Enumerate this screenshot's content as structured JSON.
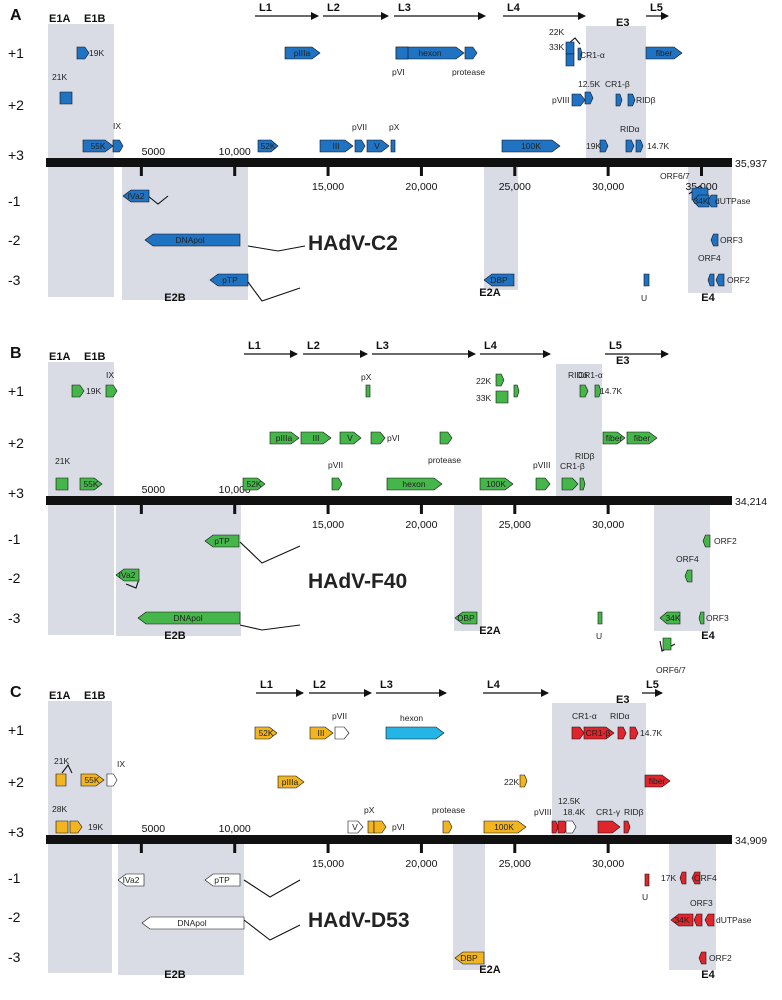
{
  "colors": {
    "shade": "#d9dce5",
    "axis": "#111111",
    "C2": "#1f73c2",
    "F40": "#45b649",
    "D53_yellow": "#f2b51f",
    "D53_red": "#e0262c",
    "D53_cyan": "#25b4e6",
    "white": "#ffffff"
  },
  "panels": [
    {
      "letter": "A",
      "title": "HAdV-C2",
      "genome_length": 35937,
      "length_label": "35,937",
      "frames": [
        "+1",
        "+2",
        "+3",
        "-1",
        "-2",
        "-3"
      ],
      "scale_labels": [
        "5000",
        "10,000",
        "15,000",
        "20,000",
        "25,000",
        "30,000",
        "35,000"
      ],
      "regions": [
        {
          "name": "E1A",
          "position": "top"
        },
        {
          "name": "E1B",
          "position": "top"
        },
        {
          "name": "E3",
          "position": "top"
        },
        {
          "name": "E2B",
          "position": "bottom"
        },
        {
          "name": "E2A",
          "position": "bottom"
        },
        {
          "name": "E4",
          "position": "bottom"
        }
      ],
      "late": [
        "L1",
        "L2",
        "L3",
        "L4",
        "L5"
      ],
      "genes": [
        {
          "label": "19K",
          "frame": "+1"
        },
        {
          "label": "pIIIa",
          "frame": "+1"
        },
        {
          "label": "hexon",
          "frame": "+1"
        },
        {
          "label": "pVI",
          "frame": "+1"
        },
        {
          "label": "protease",
          "frame": "+1"
        },
        {
          "label": "22K",
          "frame": "+1"
        },
        {
          "label": "33K",
          "frame": "+1"
        },
        {
          "label": "CR1-α",
          "frame": "+1"
        },
        {
          "label": "fiber",
          "frame": "+1"
        },
        {
          "label": "21K",
          "frame": "+2"
        },
        {
          "label": "12.5K",
          "frame": "+2"
        },
        {
          "label": "pVIII",
          "frame": "+2"
        },
        {
          "label": "CR1-β",
          "frame": "+2"
        },
        {
          "label": "RIDβ",
          "frame": "+2"
        },
        {
          "label": "IX",
          "frame": "+3"
        },
        {
          "label": "55K",
          "frame": "+3"
        },
        {
          "label": "52K",
          "frame": "+3"
        },
        {
          "label": "III",
          "frame": "+3"
        },
        {
          "label": "pVII",
          "frame": "+3"
        },
        {
          "label": "V",
          "frame": "+3"
        },
        {
          "label": "pX",
          "frame": "+3"
        },
        {
          "label": "100K",
          "frame": "+3"
        },
        {
          "label": "19K",
          "frame": "+3"
        },
        {
          "label": "RIDα",
          "frame": "+3"
        },
        {
          "label": "14.7K",
          "frame": "+3"
        },
        {
          "label": "IVa2",
          "frame": "-1"
        },
        {
          "label": "ORF6/7",
          "frame": "-1"
        },
        {
          "label": "34K",
          "frame": "-1"
        },
        {
          "label": "dUTPase",
          "frame": "-1"
        },
        {
          "label": "DNApol",
          "frame": "-2"
        },
        {
          "label": "ORF3",
          "frame": "-2"
        },
        {
          "label": "pTP",
          "frame": "-3"
        },
        {
          "label": "DBP",
          "frame": "-3"
        },
        {
          "label": "U",
          "frame": "-3"
        },
        {
          "label": "ORF4",
          "frame": "-3"
        },
        {
          "label": "ORF2",
          "frame": "-3"
        }
      ]
    },
    {
      "letter": "B",
      "title": "HAdV-F40",
      "genome_length": 34214,
      "length_label": "34,214",
      "frames": [
        "+1",
        "+2",
        "+3",
        "-1",
        "-2",
        "-3"
      ],
      "scale_labels": [
        "5000",
        "10,000",
        "15,000",
        "20,000",
        "25,000",
        "30,000"
      ],
      "regions": [
        {
          "name": "E1A",
          "position": "top"
        },
        {
          "name": "E1B",
          "position": "top"
        },
        {
          "name": "E3",
          "position": "top"
        },
        {
          "name": "E2B",
          "position": "bottom"
        },
        {
          "name": "E2A",
          "position": "bottom"
        },
        {
          "name": "E4",
          "position": "bottom"
        }
      ],
      "late": [
        "L1",
        "L2",
        "L3",
        "L4",
        "L5"
      ],
      "genes": [
        {
          "label": "19K",
          "frame": "+1"
        },
        {
          "label": "IX",
          "frame": "+1"
        },
        {
          "label": "pX",
          "frame": "+1"
        },
        {
          "label": "22K",
          "frame": "+1"
        },
        {
          "label": "33K",
          "frame": "+1"
        },
        {
          "label": "CR1-α",
          "frame": "+1"
        },
        {
          "label": "RIDα",
          "frame": "+1"
        },
        {
          "label": "14.7K",
          "frame": "+1"
        },
        {
          "label": "pIIIa",
          "frame": "+2"
        },
        {
          "label": "III",
          "frame": "+2"
        },
        {
          "label": "V",
          "frame": "+2"
        },
        {
          "label": "pVI",
          "frame": "+2"
        },
        {
          "label": "protease",
          "frame": "+2"
        },
        {
          "label": "fiber",
          "frame": "+2"
        },
        {
          "label": "fiber",
          "frame": "+2"
        },
        {
          "label": "21K",
          "frame": "+3"
        },
        {
          "label": "55K",
          "frame": "+3"
        },
        {
          "label": "52K",
          "frame": "+3"
        },
        {
          "label": "pVII",
          "frame": "+3"
        },
        {
          "label": "hexon",
          "frame": "+3"
        },
        {
          "label": "100K",
          "frame": "+3"
        },
        {
          "label": "pVIII",
          "frame": "+3"
        },
        {
          "label": "CR1-β",
          "frame": "+3"
        },
        {
          "label": "RIDβ",
          "frame": "+3"
        },
        {
          "label": "pTP",
          "frame": "-1"
        },
        {
          "label": "ORF2",
          "frame": "-1"
        },
        {
          "label": "IVa2",
          "frame": "-2"
        },
        {
          "label": "ORF4",
          "frame": "-2"
        },
        {
          "label": "DNApol",
          "frame": "-3"
        },
        {
          "label": "DBP",
          "frame": "-3"
        },
        {
          "label": "U",
          "frame": "-3"
        },
        {
          "label": "34K",
          "frame": "-3"
        },
        {
          "label": "ORF3",
          "frame": "-3"
        },
        {
          "label": "ORF6/7",
          "frame": "-3"
        }
      ]
    },
    {
      "letter": "C",
      "title": "HAdV-D53",
      "genome_length": 34909,
      "length_label": "34,909",
      "frames": [
        "+1",
        "+2",
        "+3",
        "-1",
        "-2",
        "-3"
      ],
      "scale_labels": [
        "5000",
        "10,000",
        "15,000",
        "20,000",
        "25,000",
        "30,000"
      ],
      "regions": [
        {
          "name": "E1A",
          "position": "top"
        },
        {
          "name": "E1B",
          "position": "top"
        },
        {
          "name": "E3",
          "position": "top"
        },
        {
          "name": "E2B",
          "position": "bottom"
        },
        {
          "name": "E2A",
          "position": "bottom"
        },
        {
          "name": "E4",
          "position": "bottom"
        }
      ],
      "late": [
        "L1",
        "L2",
        "L3",
        "L4",
        "L5"
      ],
      "genes": [
        {
          "label": "21K",
          "frame": "+1"
        },
        {
          "label": "52K",
          "frame": "+1"
        },
        {
          "label": "III",
          "frame": "+1"
        },
        {
          "label": "pVII",
          "frame": "+1"
        },
        {
          "label": "hexon",
          "frame": "+1"
        },
        {
          "label": "CR1-α",
          "frame": "+1"
        },
        {
          "label": "CR1-β",
          "frame": "+1"
        },
        {
          "label": "RIDα",
          "frame": "+1"
        },
        {
          "label": "14.7K",
          "frame": "+1"
        },
        {
          "label": "55K",
          "frame": "+2"
        },
        {
          "label": "IX",
          "frame": "+2"
        },
        {
          "label": "pIIIa",
          "frame": "+2"
        },
        {
          "label": "22K",
          "frame": "+2"
        },
        {
          "label": "fiber",
          "frame": "+2"
        },
        {
          "label": "28K",
          "frame": "+3"
        },
        {
          "label": "19K",
          "frame": "+3"
        },
        {
          "label": "V",
          "frame": "+3"
        },
        {
          "label": "pX",
          "frame": "+3"
        },
        {
          "label": "pVI",
          "frame": "+3"
        },
        {
          "label": "protease",
          "frame": "+3"
        },
        {
          "label": "100K",
          "frame": "+3"
        },
        {
          "label": "pVIII",
          "frame": "+3"
        },
        {
          "label": "12.5K",
          "frame": "+3"
        },
        {
          "label": "18.4K",
          "frame": "+3"
        },
        {
          "label": "CR1-γ",
          "frame": "+3"
        },
        {
          "label": "RIDβ",
          "frame": "+3"
        },
        {
          "label": "IVa2",
          "frame": "-1"
        },
        {
          "label": "pTP",
          "frame": "-1"
        },
        {
          "label": "U",
          "frame": "-1"
        },
        {
          "label": "17K",
          "frame": "-1"
        },
        {
          "label": "ORF4",
          "frame": "-1"
        },
        {
          "label": "DNApol",
          "frame": "-2"
        },
        {
          "label": "34K",
          "frame": "-2"
        },
        {
          "label": "ORF3",
          "frame": "-2"
        },
        {
          "label": "dUTPase",
          "frame": "-2"
        },
        {
          "label": "DBP",
          "frame": "-3"
        },
        {
          "label": "ORF2",
          "frame": "-3"
        }
      ]
    }
  ]
}
